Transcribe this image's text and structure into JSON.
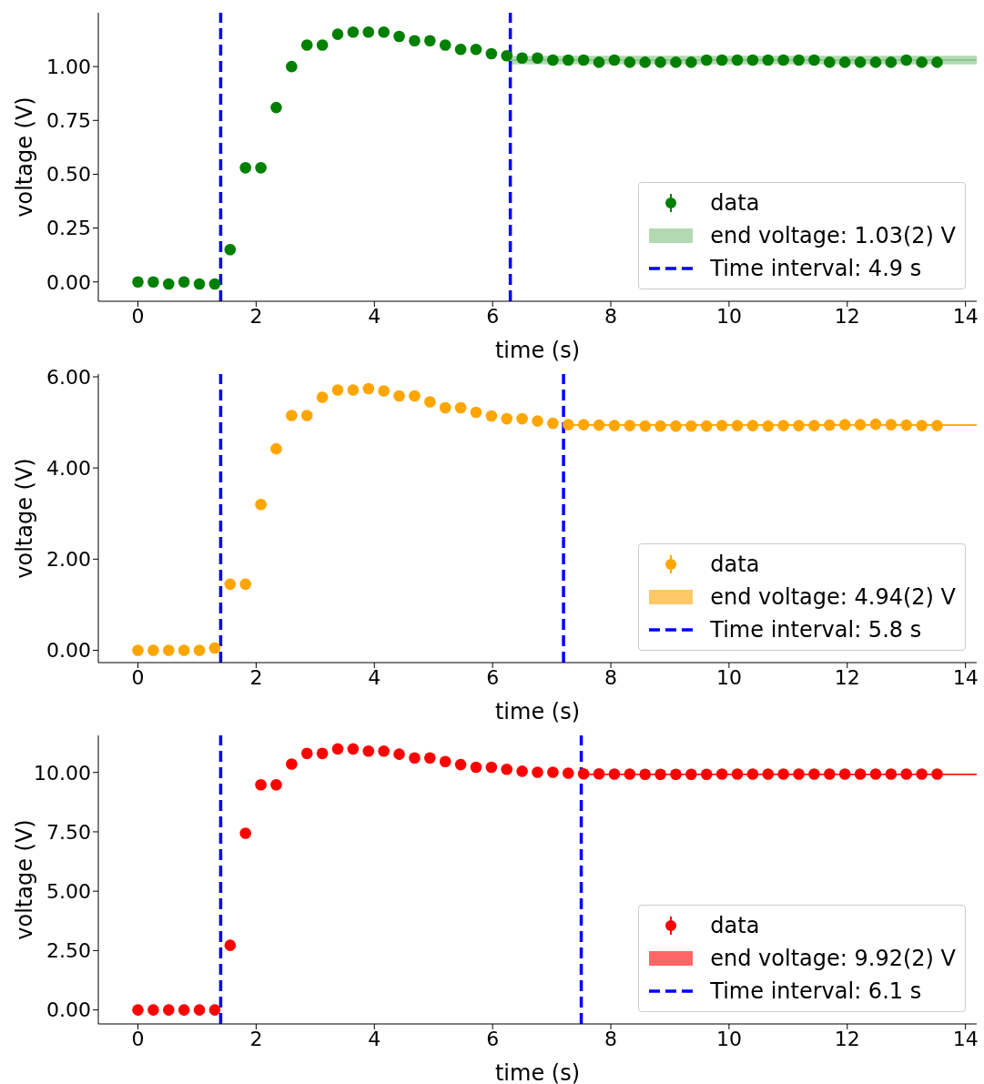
{
  "chart_data": [
    {
      "type": "scatter",
      "xlabel": "time (s)",
      "ylabel": "voltage (V)",
      "xlim": [
        -0.67,
        14.19
      ],
      "xticks": [
        0,
        2,
        4,
        6,
        8,
        10,
        12,
        14
      ],
      "ylim": [
        -0.09,
        1.25
      ],
      "yticks": [
        {
          "value": 0,
          "label": "0.00"
        },
        {
          "value": 0.25,
          "label": "0.25"
        },
        {
          "value": 0.5,
          "label": "0.50"
        },
        {
          "value": 0.75,
          "label": "0.75"
        },
        {
          "value": 1,
          "label": "1.00"
        }
      ],
      "legend": "bottom right",
      "grid": false,
      "series": [
        {
          "name": "data",
          "marker": "circle",
          "color": "#008000",
          "x": [
            0,
            0.26,
            0.52,
            0.78,
            1.04,
            1.3,
            1.56,
            1.82,
            2.08,
            2.34,
            2.6,
            2.86,
            3.12,
            3.38,
            3.64,
            3.9,
            4.16,
            4.42,
            4.68,
            4.94,
            5.2,
            5.46,
            5.72,
            5.98,
            6.24,
            6.5,
            6.76,
            7.02,
            7.28,
            7.54,
            7.8,
            8.06,
            8.32,
            8.58,
            8.84,
            9.1,
            9.36,
            9.62,
            9.88,
            10.14,
            10.4,
            10.66,
            10.92,
            11.18,
            11.44,
            11.7,
            11.96,
            12.22,
            12.48,
            12.74,
            13.0,
            13.26,
            13.52
          ],
          "values": [
            0,
            0,
            -0.01,
            0,
            -0.01,
            -0.01,
            0.15,
            0.53,
            0.53,
            0.81,
            1.0,
            1.1,
            1.1,
            1.15,
            1.16,
            1.16,
            1.16,
            1.14,
            1.12,
            1.12,
            1.1,
            1.08,
            1.08,
            1.06,
            1.05,
            1.04,
            1.04,
            1.03,
            1.03,
            1.03,
            1.02,
            1.03,
            1.02,
            1.02,
            1.02,
            1.02,
            1.02,
            1.03,
            1.03,
            1.03,
            1.03,
            1.03,
            1.03,
            1.03,
            1.03,
            1.02,
            1.02,
            1.02,
            1.02,
            1.02,
            1.03,
            1.02,
            1.02
          ]
        },
        {
          "name": "end voltage: 1.03(2) V",
          "type": "line",
          "marker": "none",
          "color": "#80bf80",
          "x": [
            6.3,
            14.19
          ],
          "values": [
            1.03,
            1.03
          ],
          "lower": [
            1.01,
            1.01
          ],
          "upper": [
            1.05,
            1.05
          ]
        }
      ],
      "annotations": [
        "Time interval: 4.9 s"
      ],
      "ref_lines": [
        {
          "axis": "x",
          "value": 1.4,
          "color": "#0000ff",
          "line_style": "dashed"
        },
        {
          "axis": "x",
          "value": 6.3,
          "color": "#0000ff",
          "line_style": "dashed"
        }
      ]
    },
    {
      "type": "scatter",
      "xlabel": "time (s)",
      "ylabel": "voltage (V)",
      "xlim": [
        -0.67,
        14.19
      ],
      "xticks": [
        0,
        2,
        4,
        6,
        8,
        10,
        12,
        14
      ],
      "ylim": [
        -0.27,
        6.06
      ],
      "yticks": [
        {
          "value": 0,
          "label": "0.00"
        },
        {
          "value": 2,
          "label": "2.00"
        },
        {
          "value": 4,
          "label": "4.00"
        },
        {
          "value": 6,
          "label": "6.00"
        }
      ],
      "legend": "bottom right",
      "grid": false,
      "series": [
        {
          "name": "data",
          "marker": "circle",
          "color": "#ffa500",
          "x": [
            0,
            0.26,
            0.52,
            0.78,
            1.04,
            1.3,
            1.56,
            1.82,
            2.08,
            2.34,
            2.6,
            2.86,
            3.12,
            3.38,
            3.64,
            3.9,
            4.16,
            4.42,
            4.68,
            4.94,
            5.2,
            5.46,
            5.72,
            5.98,
            6.24,
            6.5,
            6.76,
            7.02,
            7.28,
            7.54,
            7.8,
            8.06,
            8.32,
            8.58,
            8.84,
            9.1,
            9.36,
            9.62,
            9.88,
            10.14,
            10.4,
            10.66,
            10.92,
            11.18,
            11.44,
            11.7,
            11.96,
            12.22,
            12.48,
            12.74,
            13.0,
            13.26,
            13.52
          ],
          "values": [
            0,
            0,
            0,
            0,
            0,
            0.05,
            1.45,
            1.45,
            3.2,
            4.42,
            5.15,
            5.15,
            5.55,
            5.71,
            5.71,
            5.74,
            5.69,
            5.58,
            5.58,
            5.45,
            5.32,
            5.32,
            5.22,
            5.14,
            5.08,
            5.08,
            5.03,
            4.98,
            4.95,
            4.95,
            4.94,
            4.93,
            4.93,
            4.92,
            4.92,
            4.92,
            4.92,
            4.92,
            4.93,
            4.93,
            4.93,
            4.92,
            4.93,
            4.93,
            4.93,
            4.94,
            4.95,
            4.95,
            4.96,
            4.95,
            4.94,
            4.93,
            4.93
          ]
        },
        {
          "name": "end voltage: 4.94(2) V",
          "type": "line",
          "marker": "none",
          "color": "#ffa500",
          "x": [
            7.2,
            14.19
          ],
          "values": [
            4.94,
            4.94
          ],
          "lower": [
            4.92,
            4.92
          ],
          "upper": [
            4.96,
            4.96
          ]
        }
      ],
      "annotations": [
        "Time interval: 5.8 s"
      ],
      "ref_lines": [
        {
          "axis": "x",
          "value": 1.4,
          "color": "#0000ff",
          "line_style": "dashed"
        },
        {
          "axis": "x",
          "value": 7.2,
          "color": "#0000ff",
          "line_style": "dashed"
        }
      ]
    },
    {
      "type": "scatter",
      "xlabel": "time (s)",
      "ylabel": "voltage (V)",
      "xlim": [
        -0.67,
        14.19
      ],
      "xticks": [
        0,
        2,
        4,
        6,
        8,
        10,
        12,
        14
      ],
      "ylim": [
        -0.59,
        11.56
      ],
      "yticks": [
        {
          "value": 0,
          "label": "0.00"
        },
        {
          "value": 2.5,
          "label": "2.50"
        },
        {
          "value": 5,
          "label": "5.00"
        },
        {
          "value": 7.5,
          "label": "7.50"
        },
        {
          "value": 10,
          "label": "10.00"
        }
      ],
      "legend": "bottom right",
      "grid": false,
      "series": [
        {
          "name": "data",
          "marker": "circle",
          "color": "#ff0000",
          "x": [
            0,
            0.26,
            0.52,
            0.78,
            1.04,
            1.3,
            1.56,
            1.82,
            2.08,
            2.34,
            2.6,
            2.86,
            3.12,
            3.38,
            3.64,
            3.9,
            4.16,
            4.42,
            4.68,
            4.94,
            5.2,
            5.46,
            5.72,
            5.98,
            6.24,
            6.5,
            6.76,
            7.02,
            7.28,
            7.54,
            7.8,
            8.06,
            8.32,
            8.58,
            8.84,
            9.1,
            9.36,
            9.62,
            9.88,
            10.14,
            10.4,
            10.66,
            10.92,
            11.18,
            11.44,
            11.7,
            11.96,
            12.22,
            12.48,
            12.74,
            13.0,
            13.26,
            13.52
          ],
          "values": [
            0,
            0,
            0,
            0,
            0,
            0,
            2.72,
            7.44,
            9.48,
            9.48,
            10.35,
            10.8,
            10.8,
            10.99,
            10.99,
            10.9,
            10.9,
            10.77,
            10.61,
            10.61,
            10.46,
            10.33,
            10.22,
            10.22,
            10.13,
            10.05,
            10.01,
            10.01,
            9.97,
            9.94,
            9.94,
            9.93,
            9.93,
            9.92,
            9.92,
            9.92,
            9.92,
            9.92,
            9.93,
            9.93,
            9.93,
            9.93,
            9.93,
            9.93,
            9.93,
            9.93,
            9.93,
            9.93,
            9.93,
            9.93,
            9.93,
            9.93,
            9.93
          ]
        },
        {
          "name": "end voltage: 9.92(2) V",
          "type": "line",
          "marker": "none",
          "color": "#ff0000",
          "x": [
            7.5,
            14.19
          ],
          "values": [
            9.92,
            9.92
          ],
          "lower": [
            9.9,
            9.9
          ],
          "upper": [
            9.94,
            9.94
          ]
        }
      ],
      "annotations": [
        "Time interval: 6.1 s"
      ],
      "ref_lines": [
        {
          "axis": "x",
          "value": 1.4,
          "color": "#0000ff",
          "line_style": "dashed"
        },
        {
          "axis": "x",
          "value": 7.5,
          "color": "#0000ff",
          "line_style": "dashed"
        }
      ]
    }
  ]
}
